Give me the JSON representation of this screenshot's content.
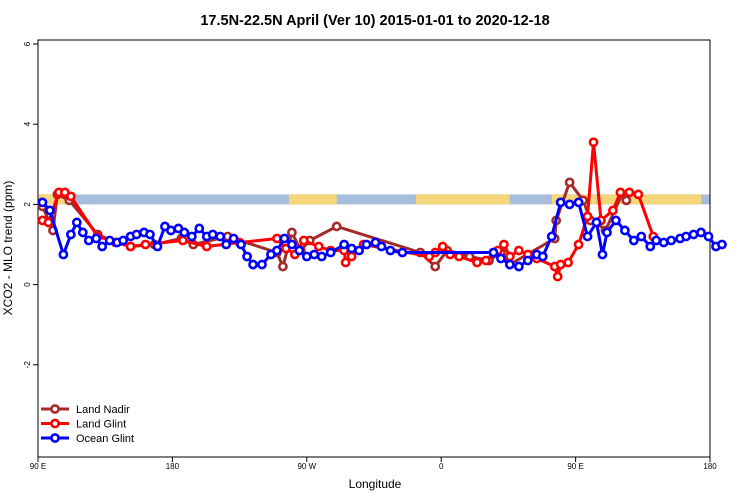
{
  "chart_data": {
    "type": "line",
    "title": "17.5N-22.5N April (Ver 10)   2015-01-01 to 2020-12-18",
    "xlabel": "Longitude",
    "ylabel": "XCO2 - MLO trend (ppm)",
    "ylim": [
      -4.3,
      6.1
    ],
    "yticks": [
      -2,
      0,
      2,
      4,
      6
    ],
    "ytick_labels": [
      "-2",
      "0",
      "2",
      "4",
      "6"
    ],
    "xticks": [
      0,
      90,
      180,
      270,
      360,
      450
    ],
    "xtick_labels": [
      "90 E",
      "180",
      "90 W",
      "0",
      "90 E",
      "180"
    ],
    "legend_position": "bottom-left",
    "grid": false,
    "map_band": {
      "y_range": [
        2.0,
        2.25
      ],
      "ocean_color": "#a6bddc",
      "land_color": "#f5d67a",
      "land_segments": [
        [
          0,
          20
        ],
        [
          168,
          200
        ],
        [
          253,
          316
        ],
        [
          344,
          374
        ],
        [
          376,
          444
        ]
      ]
    },
    "series": [
      {
        "name": "Land Nadir",
        "color": "#a52a2a",
        "x": [
          3,
          10,
          13,
          21,
          40,
          52,
          62,
          78,
          96,
          104,
          127,
          160,
          164,
          170,
          176,
          182,
          200,
          256,
          266,
          274,
          289,
          302,
          302,
          310,
          316,
          346,
          347,
          356,
          365,
          370,
          374,
          380,
          391,
          394
        ],
        "y": [
          1.95,
          1.35,
          2.25,
          2.1,
          1.25,
          1.05,
          0.95,
          1.0,
          1.15,
          1.0,
          1.2,
          0.8,
          0.45,
          1.3,
          0.85,
          1.1,
          1.45,
          0.8,
          0.45,
          0.85,
          0.7,
          0.6,
          0.6,
          0.8,
          0.5,
          1.15,
          1.6,
          2.55,
          2.1,
          1.6,
          1.55,
          1.35,
          2.25,
          2.1
        ]
      },
      {
        "name": "Land Glint",
        "color": "#ff0000",
        "x": [
          3,
          7,
          14,
          18,
          22,
          40,
          62,
          72,
          97,
          113,
          135,
          160,
          166,
          172,
          178,
          188,
          196,
          205,
          206,
          210,
          218,
          262,
          266,
          271,
          276,
          282,
          294,
          300,
          308,
          312,
          316,
          322,
          328,
          334,
          346,
          348,
          350,
          355,
          362,
          368,
          372,
          377,
          385,
          390,
          396,
          402,
          412
        ],
        "y": [
          1.6,
          1.55,
          2.3,
          2.3,
          2.2,
          1.2,
          0.95,
          1.0,
          1.1,
          0.95,
          1.05,
          1.15,
          0.9,
          0.75,
          1.1,
          0.95,
          0.85,
          0.85,
          0.55,
          0.7,
          1.0,
          0.7,
          0.8,
          0.95,
          0.75,
          0.7,
          0.55,
          0.6,
          0.85,
          1.0,
          0.7,
          0.85,
          0.75,
          0.65,
          0.45,
          0.2,
          0.5,
          0.55,
          1.0,
          1.7,
          3.55,
          1.6,
          1.85,
          2.3,
          2.3,
          2.25,
          1.2
        ]
      },
      {
        "name": "Ocean Glint",
        "color": "#0000ff",
        "x": [
          3,
          8,
          17,
          22,
          26,
          30,
          34,
          39,
          43,
          48,
          53,
          57,
          62,
          66,
          71,
          75,
          80,
          85,
          89,
          94,
          98,
          103,
          108,
          113,
          117,
          122,
          126,
          131,
          136,
          140,
          144,
          150,
          156,
          160,
          165,
          170,
          175,
          180,
          185,
          190,
          196,
          205,
          210,
          215,
          220,
          226,
          230,
          236,
          244,
          305,
          310,
          316,
          322,
          328,
          334,
          338,
          344,
          350,
          356,
          362,
          368,
          374,
          378,
          381,
          387,
          393,
          399,
          404,
          410,
          414,
          419,
          424,
          430,
          434,
          439,
          444,
          449,
          454,
          458
        ],
        "y": [
          2.05,
          1.85,
          0.75,
          1.25,
          1.55,
          1.3,
          1.1,
          1.15,
          0.95,
          1.1,
          1.05,
          1.1,
          1.2,
          1.25,
          1.3,
          1.25,
          0.95,
          1.45,
          1.35,
          1.4,
          1.3,
          1.2,
          1.4,
          1.2,
          1.25,
          1.2,
          1.0,
          1.15,
          1.0,
          0.7,
          0.5,
          0.5,
          0.75,
          0.85,
          1.15,
          1.0,
          0.85,
          0.7,
          0.75,
          0.7,
          0.8,
          1.0,
          0.9,
          0.85,
          1.0,
          1.05,
          0.95,
          0.85,
          0.8,
          0.8,
          0.65,
          0.5,
          0.45,
          0.6,
          0.75,
          0.7,
          1.2,
          2.05,
          2.0,
          2.05,
          1.2,
          1.55,
          0.75,
          1.3,
          1.6,
          1.35,
          1.1,
          1.2,
          0.95,
          1.1,
          1.05,
          1.1,
          1.15,
          1.2,
          1.25,
          1.3,
          1.2,
          0.95,
          1.0
        ]
      }
    ]
  }
}
